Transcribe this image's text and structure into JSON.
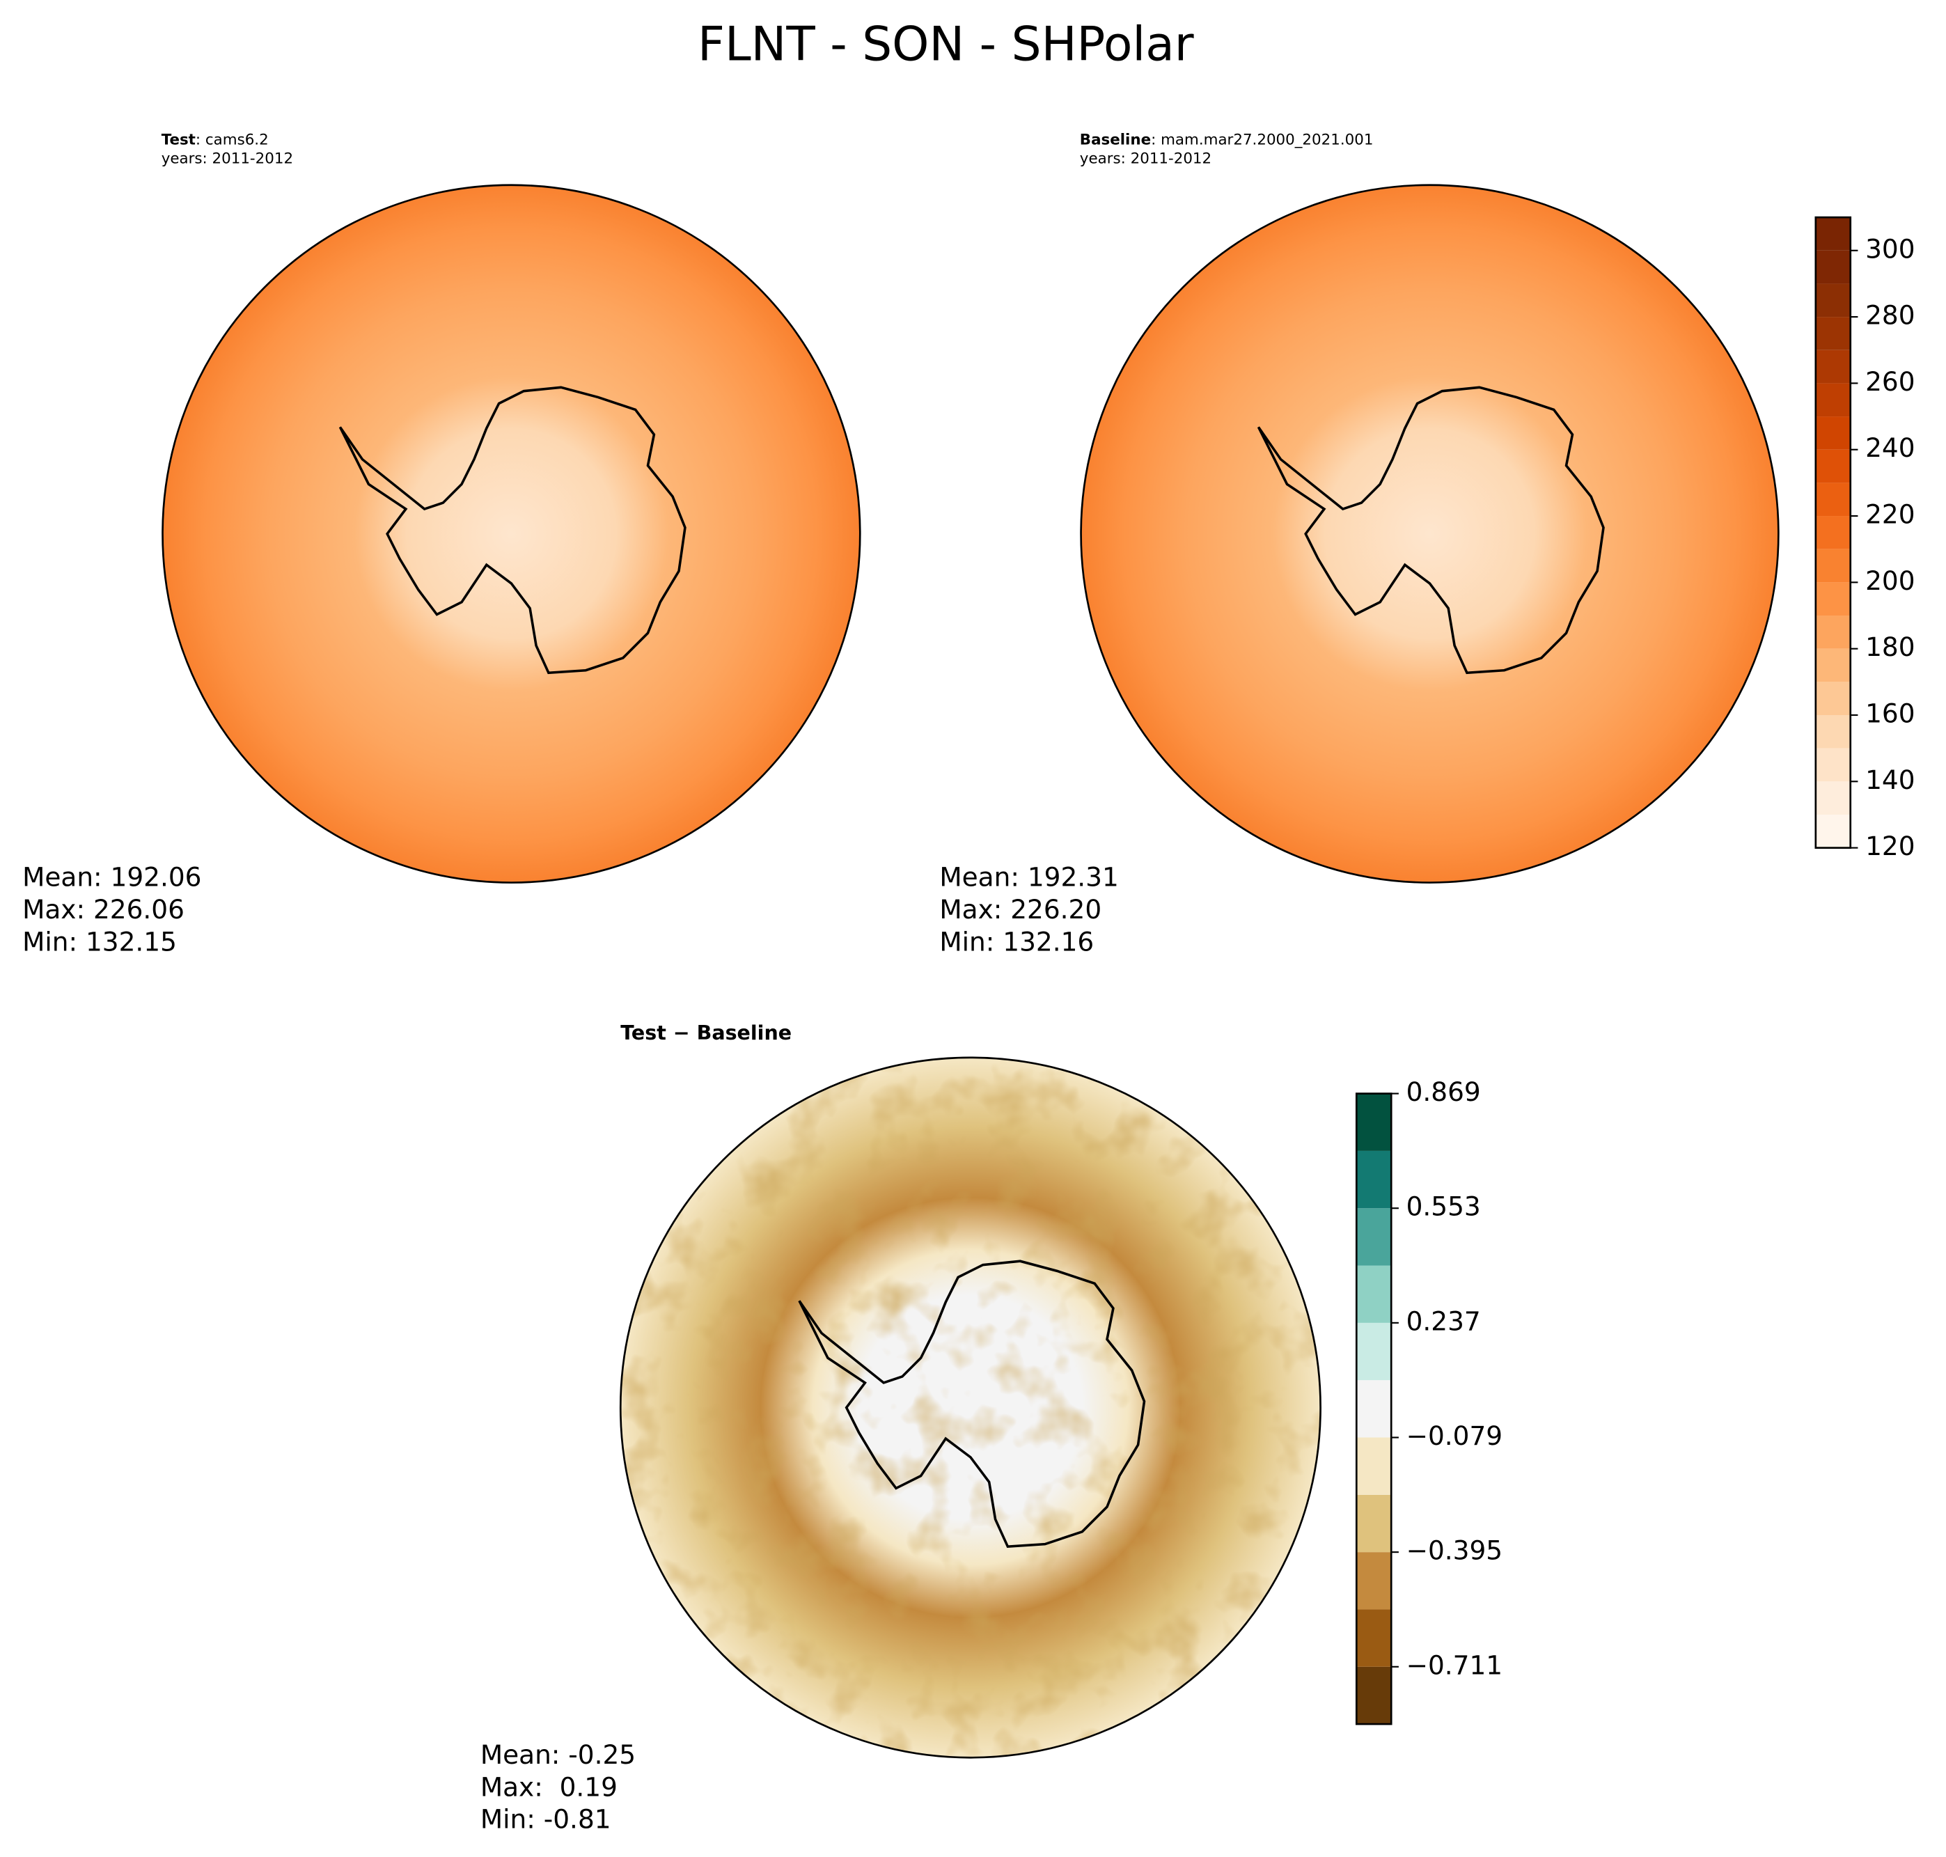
{
  "title": "FLNT - SON - SHPolar",
  "chart_data": [
    {
      "type": "map",
      "label_bold": "Test",
      "label_rest": ": cams6.2",
      "years": "years: 2011-2012",
      "stats": [
        "Mean: 192.06",
        "Max: 226.06",
        "Min: 132.15"
      ]
    },
    {
      "type": "map",
      "label_bold": "Baseline",
      "label_rest": ": mam.mar27.2000_2021.001",
      "years": "years: 2011-2012",
      "stats": [
        "Mean: 192.31",
        "Max: 226.20",
        "Min: 132.16"
      ]
    },
    {
      "type": "colorbar",
      "ylim": [
        120,
        310
      ],
      "levels": [
        120,
        130,
        140,
        150,
        160,
        170,
        180,
        190,
        200,
        210,
        220,
        230,
        240,
        250,
        260,
        270,
        280,
        290,
        300,
        310
      ],
      "colors": [
        "#fff5eb",
        "#feeddc",
        "#fee3c8",
        "#fdd8b2",
        "#fdc895",
        "#fdb778",
        "#fda55e",
        "#fd9345",
        "#f98230",
        "#f4701f",
        "#eb6011",
        "#df5107",
        "#d04501",
        "#bf3f02",
        "#ad3903",
        "#9c3403",
        "#8c2f04",
        "#7f2704",
        "#7a2503"
      ],
      "yticks": [
        120,
        140,
        160,
        180,
        200,
        220,
        240,
        260,
        280,
        300
      ]
    },
    {
      "type": "map",
      "label_bold": "Test − Baseline",
      "stats": [
        "Mean: -0.25",
        "Max:  0.19",
        "Min: -0.81"
      ]
    },
    {
      "type": "colorbar",
      "ylim": [
        -0.869,
        0.869
      ],
      "levels": [
        -0.869,
        -0.711,
        -0.553,
        -0.395,
        -0.237,
        -0.079,
        0.079,
        0.237,
        0.395,
        0.553,
        0.711,
        0.869
      ],
      "colors": [
        "#673b09",
        "#9a5b13",
        "#c48a3e",
        "#dfc27d",
        "#f5e7c4",
        "#f4f4f4",
        "#c9ebe4",
        "#8fd1c4",
        "#4aa59b",
        "#137a72",
        "#02523f"
      ],
      "yticks": [
        {
          "value": -0.711,
          "label": "−0.711"
        },
        {
          "value": -0.395,
          "label": "−0.395"
        },
        {
          "value": -0.079,
          "label": "−0.079"
        },
        0.237,
        0.553,
        0.869
      ]
    }
  ]
}
